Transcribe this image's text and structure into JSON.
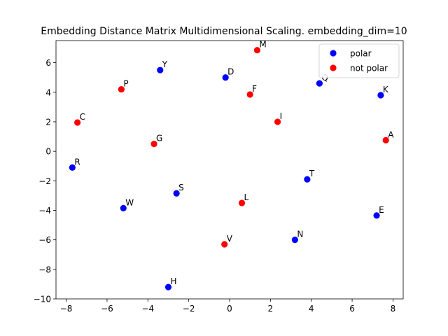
{
  "chart_data": {
    "type": "scatter",
    "title": "Embedding Distance Matrix Multidimensional Scaling. embedding_dim=10",
    "xlabel": "",
    "ylabel": "",
    "xlim": [
      -8.5,
      8.5
    ],
    "ylim": [
      -10,
      7.5
    ],
    "xticks": [
      -8,
      -6,
      -4,
      -2,
      0,
      2,
      4,
      6,
      8
    ],
    "yticks": [
      -10,
      -8,
      -6,
      -4,
      -2,
      0,
      2,
      4,
      6
    ],
    "grid": false,
    "legend_position": "top-right",
    "series": [
      {
        "name": "polar",
        "color": "#0000ff",
        "points": [
          {
            "label": "Y",
            "x": -3.4,
            "y": 5.5
          },
          {
            "label": "D",
            "x": -0.2,
            "y": 5.0
          },
          {
            "label": "Q",
            "x": 4.4,
            "y": 4.6
          },
          {
            "label": "K",
            "x": 7.4,
            "y": 3.8
          },
          {
            "label": "R",
            "x": -7.7,
            "y": -1.1
          },
          {
            "label": "T",
            "x": 3.8,
            "y": -1.9
          },
          {
            "label": "S",
            "x": -2.6,
            "y": -2.85
          },
          {
            "label": "W",
            "x": -5.2,
            "y": -3.85
          },
          {
            "label": "E",
            "x": 7.2,
            "y": -4.35
          },
          {
            "label": "N",
            "x": 3.2,
            "y": -6.0
          },
          {
            "label": "H",
            "x": -3.0,
            "y": -9.2
          }
        ]
      },
      {
        "name": "not polar",
        "color": "#ff0000",
        "points": [
          {
            "label": "M",
            "x": 1.35,
            "y": 6.85
          },
          {
            "label": "P",
            "x": -5.3,
            "y": 4.2
          },
          {
            "label": "F",
            "x": 1.0,
            "y": 3.85
          },
          {
            "label": "C",
            "x": -7.45,
            "y": 1.95
          },
          {
            "label": "I",
            "x": 2.35,
            "y": 2.0
          },
          {
            "label": "A",
            "x": 7.65,
            "y": 0.75
          },
          {
            "label": "G",
            "x": -3.7,
            "y": 0.5
          },
          {
            "label": "L",
            "x": 0.6,
            "y": -3.5
          },
          {
            "label": "V",
            "x": -0.25,
            "y": -6.3
          }
        ]
      }
    ]
  }
}
